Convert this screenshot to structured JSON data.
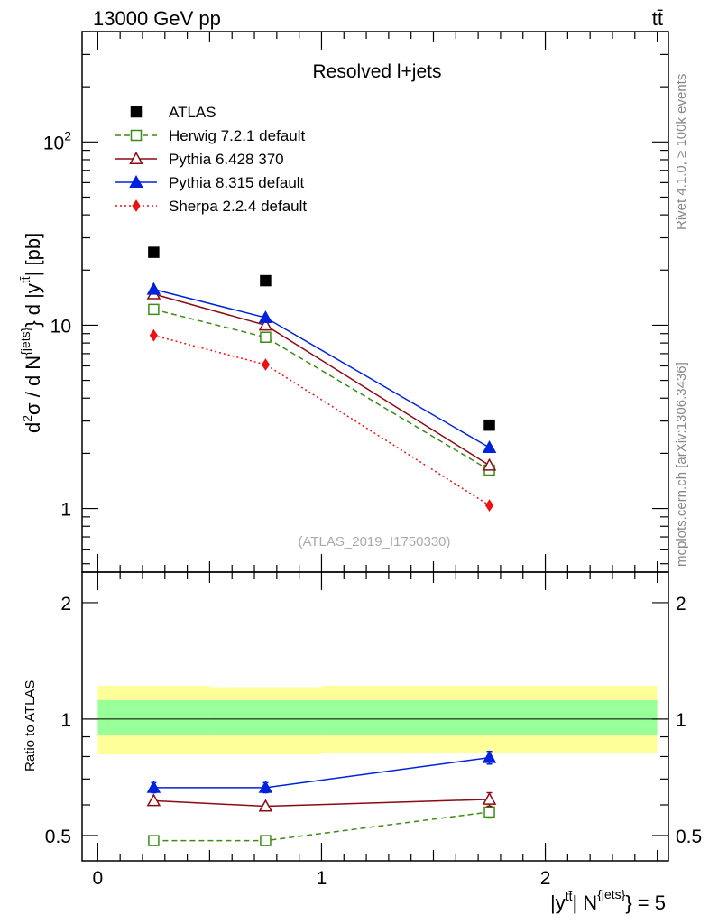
{
  "header": {
    "energy_label": "13000 GeV pp",
    "process_label": "tt̄"
  },
  "side_labels": {
    "rivet": "Rivet 4.1.0, ≥ 100k events",
    "source": "mcplots.cern.ch [arXiv:1306.3436]"
  },
  "chart_data": [
    {
      "type": "line",
      "scale": "log",
      "title": "Resolved l+jets",
      "watermark": "(ATLAS_2019_I1750330)",
      "ylabel": "d²σ / d N^{jets} d |y^{tt̄}| [pb]",
      "ylim": [
        0.45,
        400
      ],
      "xlim": [
        -0.07,
        2.55
      ],
      "x_bins": [
        0.0,
        0.5,
        1.0,
        2.5
      ],
      "x": [
        0.25,
        0.75,
        1.75
      ],
      "tick_labels": [
        "1",
        "10",
        "10²"
      ],
      "series": [
        {
          "name": "ATLAS",
          "values": [
            25.0,
            17.5,
            2.85
          ],
          "color": "#000000",
          "marker": "square-filled",
          "line": "none"
        },
        {
          "name": "Herwig 7.2.1 default",
          "values": [
            12.2,
            8.6,
            1.62
          ],
          "color": "#3a8c14",
          "marker": "square-open",
          "line": "dashed"
        },
        {
          "name": "Pythia 6.428 370",
          "values": [
            14.8,
            10.0,
            1.72
          ],
          "color": "#8b0a14",
          "marker": "triangle-open",
          "line": "solid"
        },
        {
          "name": "Pythia 8.315 default",
          "values": [
            15.7,
            11.0,
            2.15
          ],
          "color": "#0022dd",
          "marker": "triangle-filled",
          "line": "solid"
        },
        {
          "name": "Sherpa 2.2.4 default",
          "values": [
            8.8,
            6.1,
            1.04
          ],
          "color": "#ee1111",
          "marker": "diamond-filled",
          "line": "dotted"
        }
      ]
    },
    {
      "type": "line",
      "scale": "log",
      "ylabel": "Ratio to ATLAS",
      "xlabel": "|y^{tt̄}| N^{jets} = 5",
      "ylim": [
        0.43,
        2.4
      ],
      "xlim": [
        -0.07,
        2.55
      ],
      "x_bins": [
        0.0,
        0.5,
        1.0,
        2.5
      ],
      "x": [
        0.25,
        0.75,
        1.75
      ],
      "tick_labels_y": [
        "0.5",
        "1",
        "2"
      ],
      "tick_labels_x": [
        "0",
        "1",
        "2"
      ],
      "reference": 1.0,
      "bands": {
        "outer": {
          "color": "#ffff99",
          "low": [
            0.81,
            0.81,
            0.815
          ],
          "high": [
            1.22,
            1.21,
            1.22
          ]
        },
        "inner": {
          "color": "#99ff99",
          "low": [
            0.91,
            0.91,
            0.91
          ],
          "high": [
            1.12,
            1.12,
            1.12
          ]
        }
      },
      "series": [
        {
          "name": "Herwig 7.2.1 default",
          "values": [
            0.485,
            0.485,
            0.575
          ],
          "err": [
            0.0,
            0.0,
            0.02
          ],
          "color": "#3a8c14",
          "marker": "square-open",
          "line": "dashed"
        },
        {
          "name": "Pythia 6.428 370",
          "values": [
            0.615,
            0.595,
            0.62
          ],
          "err": [
            0.0,
            0.0,
            0.025
          ],
          "color": "#8b0a14",
          "marker": "triangle-open",
          "line": "solid"
        },
        {
          "name": "Pythia 8.315 default",
          "values": [
            0.665,
            0.665,
            0.795
          ],
          "err": [
            0.02,
            0.02,
            0.03
          ],
          "color": "#0022dd",
          "marker": "triangle-filled",
          "line": "solid"
        }
      ]
    }
  ]
}
